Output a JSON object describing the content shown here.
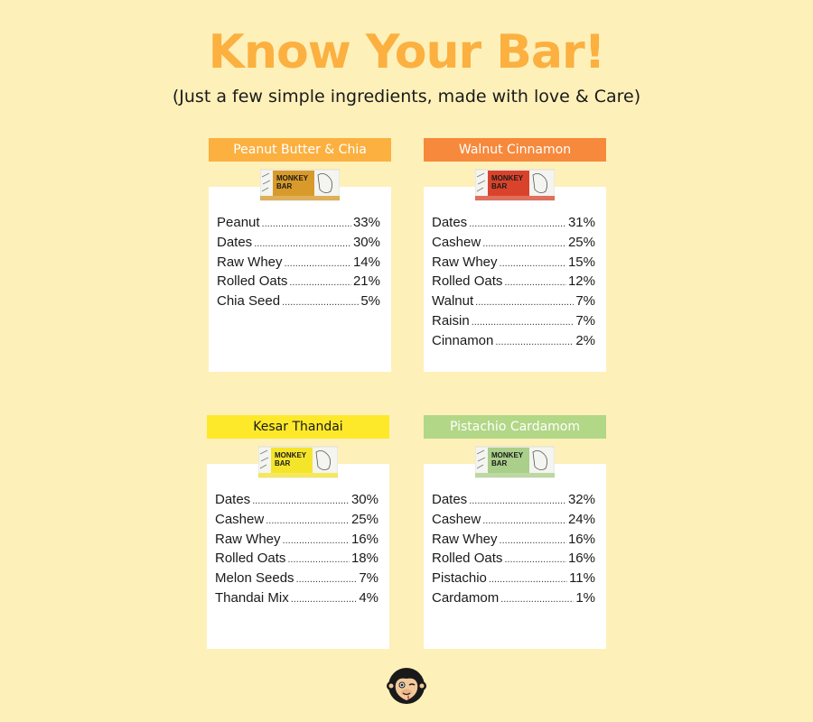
{
  "title": "Know Your Bar!",
  "subtitle": "(Just a few simple ingredients, made with love & Care)",
  "pack_brand_line1": "MONKEY",
  "pack_brand_line2": "BAR",
  "bars": [
    {
      "name": "Peanut Butter & Chia",
      "label_color": "#fbb040",
      "label_text_color": "#ffffff",
      "pack_color": "#d89a2a",
      "ingredients": [
        {
          "name": "Peanut",
          "value": "33%"
        },
        {
          "name": "Dates",
          "value": "30%"
        },
        {
          "name": "Raw Whey",
          "value": "14%"
        },
        {
          "name": "Rolled Oats",
          "value": "21%"
        },
        {
          "name": "Chia Seed",
          "value": "5%"
        }
      ]
    },
    {
      "name": "Walnut Cinnamon",
      "label_color": "#f7893c",
      "label_text_color": "#ffffff",
      "pack_color": "#d9432c",
      "ingredients": [
        {
          "name": "Dates",
          "value": "31%"
        },
        {
          "name": "Cashew",
          "value": "25%"
        },
        {
          "name": "Raw Whey",
          "value": "15%"
        },
        {
          "name": "Rolled Oats",
          "value": "12%"
        },
        {
          "name": "Walnut",
          "value": "7%"
        },
        {
          "name": "Raisin",
          "value": "7%"
        },
        {
          "name": "Cinnamon",
          "value": "2%"
        }
      ]
    },
    {
      "name": "Kesar Thandai",
      "label_color": "#fde92a",
      "label_text_color": "#1a1a1a",
      "pack_color": "#f5e52a",
      "ingredients": [
        {
          "name": "Dates",
          "value": "30%"
        },
        {
          "name": "Cashew",
          "value": "25%"
        },
        {
          "name": "Raw Whey",
          "value": "16%"
        },
        {
          "name": "Rolled Oats",
          "value": "18%"
        },
        {
          "name": "Melon Seeds",
          "value": "7%"
        },
        {
          "name": "Thandai Mix",
          "value": "4%"
        }
      ]
    },
    {
      "name": "Pistachio Cardamom",
      "label_color": "#b2d786",
      "label_text_color": "#ffffff",
      "pack_color": "#a9cf8a",
      "ingredients": [
        {
          "name": "Dates",
          "value": "32%"
        },
        {
          "name": "Cashew",
          "value": "24%"
        },
        {
          "name": "Raw Whey",
          "value": "16%"
        },
        {
          "name": "Rolled Oats",
          "value": "16%"
        },
        {
          "name": "Pistachio",
          "value": "11%"
        },
        {
          "name": "Cardamom",
          "value": "1%"
        }
      ]
    }
  ],
  "logo_icon": "monkey-face-icon"
}
